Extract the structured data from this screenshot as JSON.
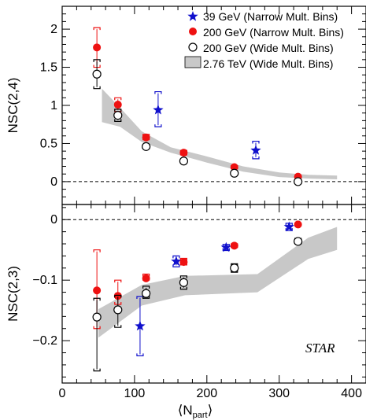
{
  "chart_data": [
    {
      "type": "scatter",
      "panel": "top",
      "ylabel": "NSC(2,4)",
      "xlim": [
        0,
        420
      ],
      "ylim": [
        -0.3,
        2.3
      ],
      "yticks": [
        0,
        0.5,
        1,
        1.5,
        2
      ],
      "ytick_labels": [
        "0",
        "0.5",
        "1",
        "1.5",
        "2"
      ],
      "reference_line": 0,
      "legend_position": "top-right",
      "legend": [
        {
          "label": "39 GeV (Narrow Mult. Bins)",
          "marker": "star",
          "color": "#1010cc"
        },
        {
          "label": "200 GeV (Narrow Mult. Bins)",
          "marker": "filled-circle",
          "color": "#ee1111"
        },
        {
          "label": "200 GeV (Wide Mult. Bins)",
          "marker": "open-circle",
          "color": "#000000"
        },
        {
          "label": "2.76 TeV (Wide Mult. Bins)",
          "marker": "band",
          "color": "#c8c8c8"
        }
      ],
      "series": [
        {
          "name": "39 GeV (Narrow Mult. Bins)",
          "points": [
            {
              "x": 137,
              "y": 0.94,
              "syst": [
                0.72,
                1.18
              ]
            },
            {
              "x": 272,
              "y": 0.41,
              "syst": [
                0.3,
                0.53
              ]
            }
          ]
        },
        {
          "name": "200 GeV (Narrow Mult. Bins)",
          "points": [
            {
              "x": 48,
              "y": 1.76,
              "syst": [
                1.5,
                2.02
              ]
            },
            {
              "x": 77,
              "y": 1.01,
              "syst": [
                0.92,
                1.1
              ]
            },
            {
              "x": 116,
              "y": 0.58,
              "syst": [
                0.55,
                0.62
              ]
            },
            {
              "x": 168,
              "y": 0.38,
              "syst": [
                0.35,
                0.41
              ]
            },
            {
              "x": 238,
              "y": 0.19,
              "syst": [
                0.17,
                0.21
              ]
            },
            {
              "x": 326,
              "y": 0.065,
              "syst": [
                0.05,
                0.08
              ]
            }
          ]
        },
        {
          "name": "200 GeV (Wide Mult. Bins)",
          "points": [
            {
              "x": 48,
              "y": 1.41,
              "syst": [
                1.22,
                1.6
              ]
            },
            {
              "x": 77,
              "y": 0.87,
              "syst": [
                0.79,
                0.95
              ]
            },
            {
              "x": 116,
              "y": 0.46,
              "syst": [
                0.43,
                0.49
              ]
            },
            {
              "x": 168,
              "y": 0.27,
              "syst": [
                0.25,
                0.29
              ]
            },
            {
              "x": 238,
              "y": 0.11,
              "syst": [
                0.1,
                0.13
              ]
            },
            {
              "x": 326,
              "y": 0.0,
              "syst": [
                -0.01,
                0.01
              ]
            }
          ]
        },
        {
          "name": "2.76 TeV (Wide Mult. Bins)",
          "band": true,
          "points": [
            {
              "x": 55,
              "lo": 0.78,
              "hi": 1.22
            },
            {
              "x": 80,
              "lo": 0.72,
              "hi": 0.97
            },
            {
              "x": 110,
              "lo": 0.52,
              "hi": 0.66
            },
            {
              "x": 150,
              "lo": 0.38,
              "hi": 0.45
            },
            {
              "x": 200,
              "lo": 0.25,
              "hi": 0.33
            },
            {
              "x": 250,
              "lo": 0.13,
              "hi": 0.2
            },
            {
              "x": 300,
              "lo": 0.06,
              "hi": 0.12
            },
            {
              "x": 340,
              "lo": 0.04,
              "hi": 0.09
            },
            {
              "x": 380,
              "lo": 0.03,
              "hi": 0.08
            }
          ]
        }
      ]
    },
    {
      "type": "scatter",
      "panel": "bottom",
      "ylabel": "NSC(2,3)",
      "xlabel": "⟨N_part⟩",
      "xlim": [
        0,
        420
      ],
      "ylim": [
        -0.27,
        0.025
      ],
      "xticks": [
        0,
        100,
        200,
        300,
        400
      ],
      "xtick_labels": [
        "0",
        "100",
        "200",
        "300",
        "400"
      ],
      "yticks": [
        -0.2,
        -0.1,
        0
      ],
      "ytick_labels": [
        "−0.2",
        "−0.1",
        "0"
      ],
      "reference_line": 0,
      "annotation": "STAR",
      "series": [
        {
          "name": "39 GeV (Narrow Mult. Bins)",
          "points": [
            {
              "x": 112,
              "y": -0.176,
              "syst": [
                -0.225,
                -0.127
              ]
            },
            {
              "x": 162,
              "y": -0.069,
              "syst": [
                -0.078,
                -0.06
              ]
            },
            {
              "x": 231,
              "y": -0.046,
              "syst": [
                -0.051,
                -0.041
              ]
            },
            {
              "x": 318,
              "y": -0.012,
              "syst": [
                -0.018,
                -0.006
              ]
            }
          ]
        },
        {
          "name": "200 GeV (Narrow Mult. Bins)",
          "points": [
            {
              "x": 48,
              "y": -0.117,
              "syst": [
                -0.18,
                -0.05
              ]
            },
            {
              "x": 77,
              "y": -0.126,
              "syst": [
                -0.14,
                -0.1
              ]
            },
            {
              "x": 116,
              "y": -0.097,
              "syst": [
                -0.1,
                -0.09
              ]
            },
            {
              "x": 168,
              "y": -0.07,
              "syst": [
                -0.075,
                -0.064
              ]
            },
            {
              "x": 238,
              "y": -0.043,
              "syst": [
                -0.046,
                -0.04
              ]
            },
            {
              "x": 326,
              "y": -0.008,
              "syst": [
                -0.01,
                -0.006
              ]
            }
          ]
        },
        {
          "name": "200 GeV (Wide Mult. Bins)",
          "points": [
            {
              "x": 48,
              "y": -0.161,
              "syst": [
                -0.25,
                -0.13
              ]
            },
            {
              "x": 77,
              "y": -0.149,
              "syst": [
                -0.178,
                -0.125
              ]
            },
            {
              "x": 116,
              "y": -0.122,
              "syst": [
                -0.13,
                -0.11
              ]
            },
            {
              "x": 168,
              "y": -0.104,
              "syst": [
                -0.115,
                -0.093
              ]
            },
            {
              "x": 238,
              "y": -0.08,
              "syst": [
                -0.087,
                -0.073
              ]
            },
            {
              "x": 326,
              "y": -0.036,
              "syst": [
                -0.04,
                -0.031
              ]
            }
          ]
        },
        {
          "name": "2.76 TeV (Wide Mult. Bins)",
          "band": true,
          "points": [
            {
              "x": 50,
              "lo": -0.195,
              "hi": -0.148
            },
            {
              "x": 110,
              "lo": -0.142,
              "hi": -0.108
            },
            {
              "x": 170,
              "lo": -0.125,
              "hi": -0.093
            },
            {
              "x": 270,
              "lo": -0.12,
              "hi": -0.09
            },
            {
              "x": 340,
              "lo": -0.065,
              "hi": -0.03
            },
            {
              "x": 380,
              "lo": -0.05,
              "hi": -0.012
            }
          ]
        }
      ]
    }
  ]
}
